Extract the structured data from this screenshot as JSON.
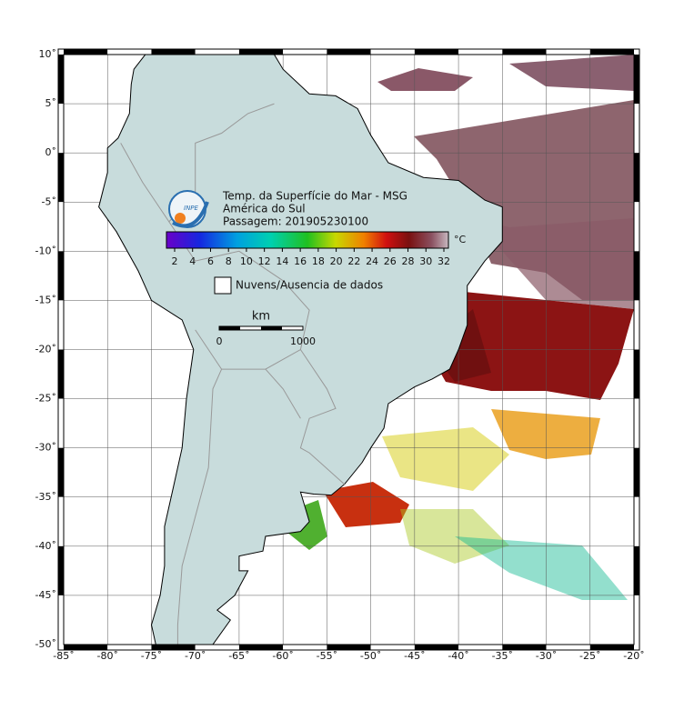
{
  "map": {
    "xlim": [
      -85,
      -20
    ],
    "ylim": [
      -50,
      10
    ],
    "xticks": [
      {
        "value": -85,
        "label": "-85˚"
      },
      {
        "value": -80,
        "label": "-80˚"
      },
      {
        "value": -75,
        "label": "-75˚"
      },
      {
        "value": -70,
        "label": "-70˚"
      },
      {
        "value": -65,
        "label": "-65˚"
      },
      {
        "value": -60,
        "label": "-60˚"
      },
      {
        "value": -55,
        "label": "-55˚"
      },
      {
        "value": -50,
        "label": "-50˚"
      },
      {
        "value": -45,
        "label": "-45˚"
      },
      {
        "value": -40,
        "label": "-40˚"
      },
      {
        "value": -35,
        "label": "-35˚"
      },
      {
        "value": -30,
        "label": "-30˚"
      },
      {
        "value": -25,
        "label": "-25˚"
      },
      {
        "value": -20,
        "label": "-20˚"
      }
    ],
    "yticks": [
      {
        "value": 10,
        "label": "10˚"
      },
      {
        "value": 5,
        "label": "5˚"
      },
      {
        "value": 0,
        "label": "0˚"
      },
      {
        "value": -5,
        "label": "-5˚"
      },
      {
        "value": -10,
        "label": "-10˚"
      },
      {
        "value": -15,
        "label": "-15˚"
      },
      {
        "value": -20,
        "label": "-20˚"
      },
      {
        "value": -25,
        "label": "-25˚"
      },
      {
        "value": -30,
        "label": "-30˚"
      },
      {
        "value": -35,
        "label": "-35˚"
      },
      {
        "value": -40,
        "label": "-40˚"
      },
      {
        "value": -45,
        "label": "-45˚"
      },
      {
        "value": -50,
        "label": "-50˚"
      }
    ]
  },
  "info": {
    "title": "Temp. da Superfície do Mar - MSG",
    "region": "América do Sul",
    "pass": "Passagem: 201905230100",
    "logo": "INPE"
  },
  "colorbar": {
    "ticks": [
      2,
      4,
      6,
      8,
      10,
      12,
      14,
      16,
      18,
      20,
      22,
      24,
      26,
      28,
      30,
      32
    ],
    "unit": "°C"
  },
  "legend": {
    "label": "Nuvens/Ausencia de dados"
  },
  "scalebar": {
    "unit": "km",
    "start": "0",
    "end": "1000"
  }
}
